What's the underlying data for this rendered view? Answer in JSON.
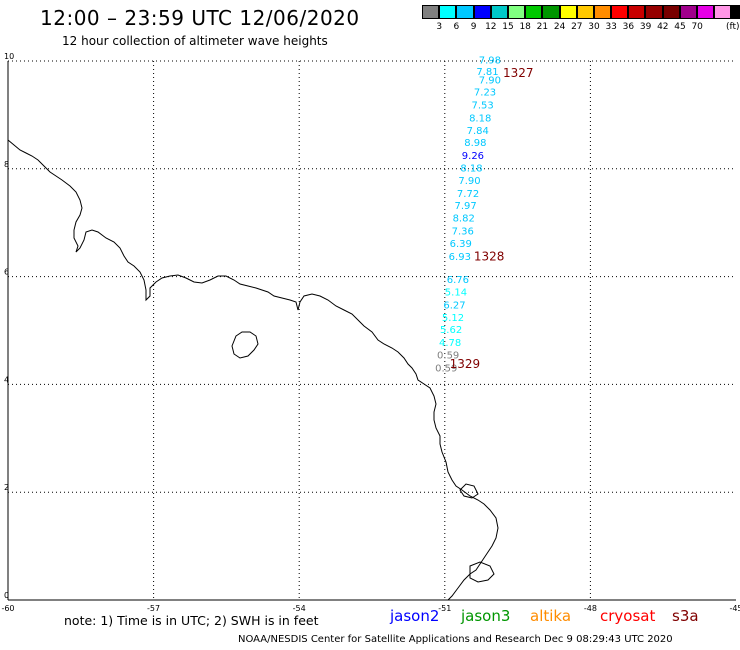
{
  "header": {
    "title": "12:00 – 23:59 UTC 12/06/2020",
    "subtitle": "12 hour collection of altimeter wave heights"
  },
  "colorbar": {
    "colors": [
      "#808080",
      "#00ffff",
      "#00c8ff",
      "#0000ff",
      "#00c8c8",
      "#80ff80",
      "#00c800",
      "#009600",
      "#ffff00",
      "#ffc800",
      "#ff8c00",
      "#ff0000",
      "#c80000",
      "#960000",
      "#780000",
      "#a0008c",
      "#e600e6",
      "#ff96e6",
      "#000000"
    ],
    "labels": [
      "3",
      "6",
      "9",
      "12",
      "15",
      "18",
      "21",
      "24",
      "27",
      "30",
      "33",
      "36",
      "39",
      "42",
      "45",
      "70"
    ],
    "unit": "(ft)"
  },
  "map": {
    "x_ticks": [
      "-60",
      "-57",
      "-54",
      "-51",
      "-48",
      "-45"
    ],
    "y_ticks": [
      "0",
      "2",
      "4",
      "6",
      "8",
      "10"
    ],
    "track_labels": [
      {
        "text": "1327",
        "lon": -49.8,
        "lat": 9.7,
        "color": "#800000"
      },
      {
        "text": "1328",
        "lon": -50.4,
        "lat": 6.3,
        "color": "#800000"
      },
      {
        "text": "1329",
        "lon": -50.9,
        "lat": 4.3,
        "color": "#800000"
      }
    ],
    "wave_heights": [
      {
        "v": "7.98",
        "lon": -50.3,
        "lat": 9.95,
        "c": "#00c8ff"
      },
      {
        "v": "7.81",
        "lon": -50.35,
        "lat": 9.74,
        "c": "#00c8ff"
      },
      {
        "v": "7.90",
        "lon": -50.3,
        "lat": 9.58,
        "c": "#00c8ff"
      },
      {
        "v": "7.23",
        "lon": -50.4,
        "lat": 9.36,
        "c": "#00c8ff"
      },
      {
        "v": "7.53",
        "lon": -50.45,
        "lat": 9.12,
        "c": "#00c8ff"
      },
      {
        "v": "8.18",
        "lon": -50.5,
        "lat": 8.88,
        "c": "#00c8ff"
      },
      {
        "v": "7.84",
        "lon": -50.55,
        "lat": 8.65,
        "c": "#00c8ff"
      },
      {
        "v": "8.98",
        "lon": -50.6,
        "lat": 8.42,
        "c": "#00c8ff"
      },
      {
        "v": "9.26",
        "lon": -50.65,
        "lat": 8.18,
        "c": "#0000ff"
      },
      {
        "v": "8.18",
        "lon": -50.68,
        "lat": 7.95,
        "c": "#00c8ff"
      },
      {
        "v": "7.90",
        "lon": -50.72,
        "lat": 7.72,
        "c": "#00c8ff"
      },
      {
        "v": "7.72",
        "lon": -50.75,
        "lat": 7.48,
        "c": "#00c8ff"
      },
      {
        "v": "7.97",
        "lon": -50.8,
        "lat": 7.25,
        "c": "#00c8ff"
      },
      {
        "v": "8.82",
        "lon": -50.84,
        "lat": 7.02,
        "c": "#00c8ff"
      },
      {
        "v": "7.36",
        "lon": -50.86,
        "lat": 6.78,
        "c": "#00c8ff"
      },
      {
        "v": "6.39",
        "lon": -50.9,
        "lat": 6.55,
        "c": "#00c8ff"
      },
      {
        "v": "6.93",
        "lon": -50.92,
        "lat": 6.31,
        "c": "#00c8ff"
      },
      {
        "v": "6.76",
        "lon": -50.96,
        "lat": 5.88,
        "c": "#00c8ff"
      },
      {
        "v": "5.14",
        "lon": -51.0,
        "lat": 5.65,
        "c": "#00ffff"
      },
      {
        "v": "6.27",
        "lon": -51.03,
        "lat": 5.41,
        "c": "#00c8ff"
      },
      {
        "v": "5.12",
        "lon": -51.06,
        "lat": 5.18,
        "c": "#00ffff"
      },
      {
        "v": "5.62",
        "lon": -51.1,
        "lat": 4.95,
        "c": "#00ffff"
      },
      {
        "v": "4.78",
        "lon": -51.12,
        "lat": 4.71,
        "c": "#00ffff"
      },
      {
        "v": "0.59",
        "lon": -51.16,
        "lat": 4.48,
        "c": "#808080"
      },
      {
        "v": "0.59",
        "lon": -51.2,
        "lat": 4.24,
        "c": "#808080"
      }
    ]
  },
  "footer": {
    "note": "note: 1) Time is in UTC; 2) SWH is in feet",
    "missions": [
      {
        "name": "jason2",
        "color": "#0000ff"
      },
      {
        "name": "jason3",
        "color": "#009600"
      },
      {
        "name": "altika",
        "color": "#ff8c00"
      },
      {
        "name": "cryosat",
        "color": "#ff0000"
      },
      {
        "name": "s3a",
        "color": "#800000"
      }
    ],
    "credit": "NOAA/NESDIS Center for Satellite Applications and Research    Dec  9 08:29:43 UTC 2020"
  }
}
